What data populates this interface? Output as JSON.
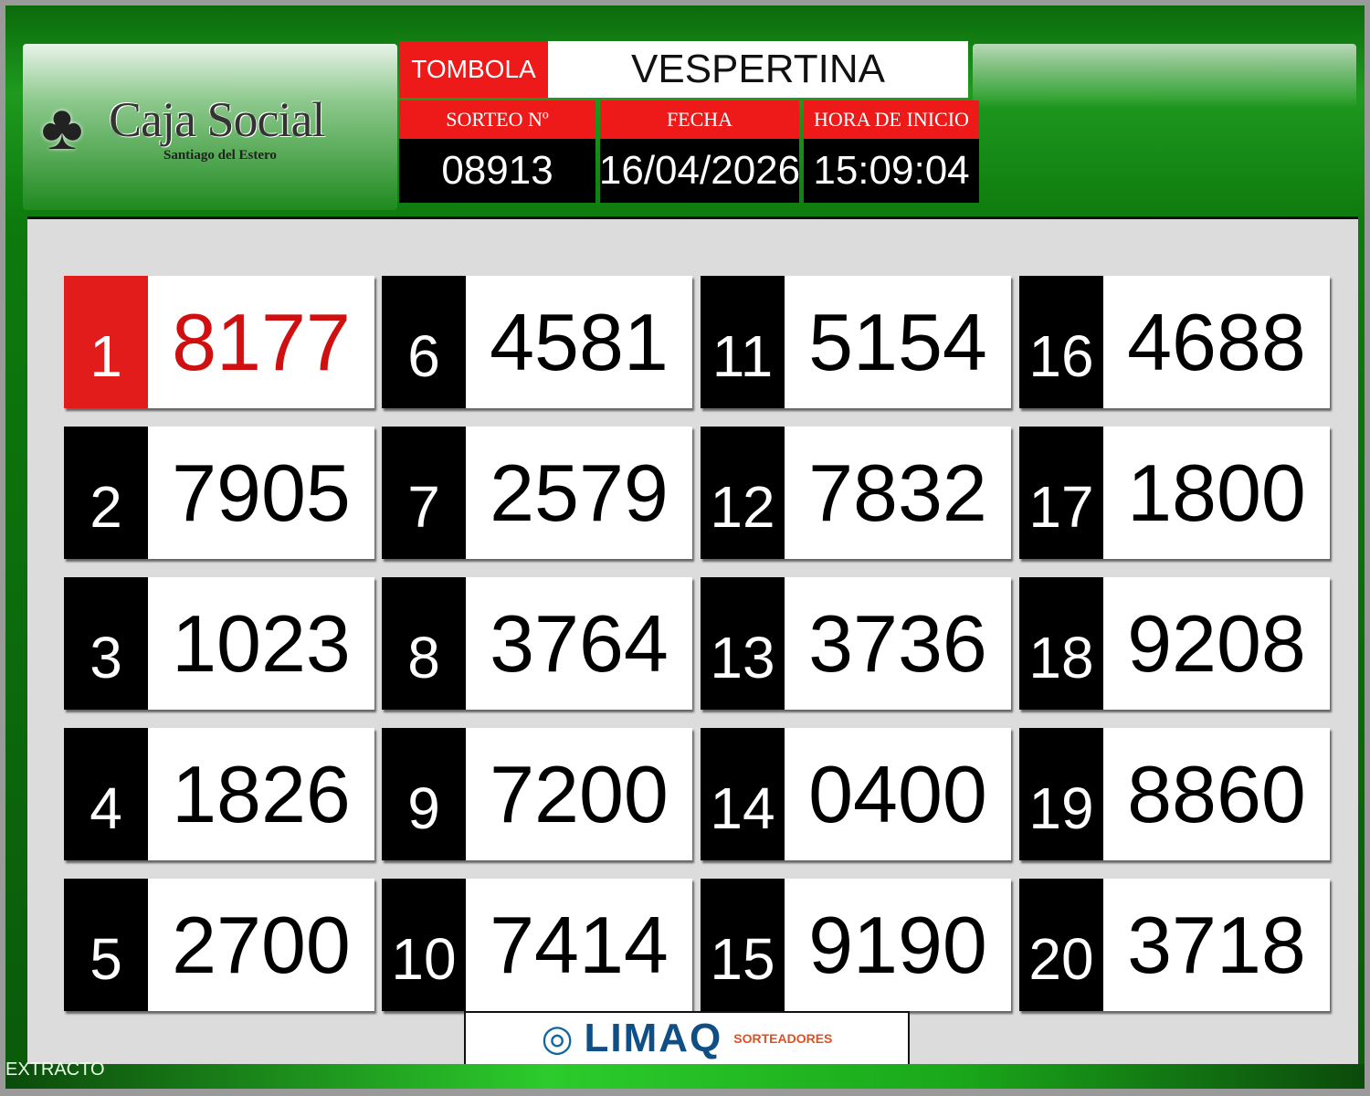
{
  "header": {
    "brand": "Caja Social",
    "brand_sub": "Santiago del Estero",
    "game": "TOMBOLA",
    "shift": "VESPERTINA",
    "labels": {
      "draw": "SORTEO Nº",
      "date": "FECHA",
      "time": "HORA DE INICIO"
    },
    "draw_number": "08913",
    "date": "16/04/2026",
    "start_time": "15:09:04"
  },
  "results": [
    {
      "pos": "1",
      "num": "8177"
    },
    {
      "pos": "2",
      "num": "7905"
    },
    {
      "pos": "3",
      "num": "1023"
    },
    {
      "pos": "4",
      "num": "1826"
    },
    {
      "pos": "5",
      "num": "2700"
    },
    {
      "pos": "6",
      "num": "4581"
    },
    {
      "pos": "7",
      "num": "2579"
    },
    {
      "pos": "8",
      "num": "3764"
    },
    {
      "pos": "9",
      "num": "7200"
    },
    {
      "pos": "10",
      "num": "7414"
    },
    {
      "pos": "11",
      "num": "5154"
    },
    {
      "pos": "12",
      "num": "7832"
    },
    {
      "pos": "13",
      "num": "3736"
    },
    {
      "pos": "14",
      "num": "0400"
    },
    {
      "pos": "15",
      "num": "9190"
    },
    {
      "pos": "16",
      "num": "4688"
    },
    {
      "pos": "17",
      "num": "1800"
    },
    {
      "pos": "18",
      "num": "9208"
    },
    {
      "pos": "19",
      "num": "8860"
    },
    {
      "pos": "20",
      "num": "3718"
    }
  ],
  "footer": {
    "sponsor": "LIMAQ",
    "sponsor_sub": "SORTEADORES",
    "status": "EXTRACTO"
  },
  "colors": {
    "accent_red": "#ee1a1a",
    "green": "#1f9a1f"
  }
}
